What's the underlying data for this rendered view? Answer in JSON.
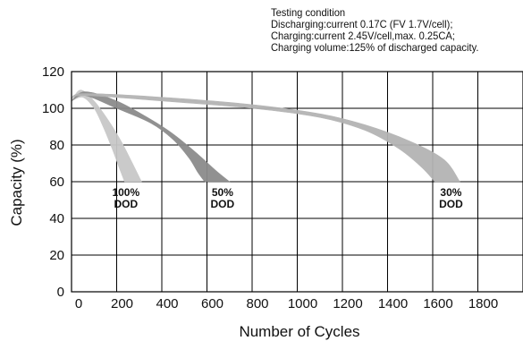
{
  "testing_condition": {
    "title": "Testing condition",
    "lines": [
      "Discharging:current 0.17C (FV 1.7V/cell);",
      "Charging:current 2.45V/cell,max. 0.25CA;",
      "Charging volume:125% of discharged  capacity."
    ]
  },
  "chart_data": {
    "type": "area",
    "title": "",
    "xlabel": "Number of Cycles",
    "ylabel": "Capacity (%)",
    "xlim": [
      0,
      2000
    ],
    "ylim": [
      0,
      120
    ],
    "x_ticks": [
      0,
      200,
      400,
      600,
      800,
      1000,
      1200,
      1400,
      1600,
      1800
    ],
    "y_ticks": [
      0,
      20,
      40,
      60,
      80,
      100,
      120
    ],
    "grid": true,
    "series": [
      {
        "name": "100% DOD",
        "label_lines": [
          "100%",
          "DOD"
        ],
        "color": "#c8c8c8",
        "upper": [
          [
            0,
            104
          ],
          [
            40,
            110
          ],
          [
            100,
            104
          ],
          [
            160,
            94
          ],
          [
            220,
            82
          ],
          [
            270,
            70
          ],
          [
            310,
            60
          ]
        ],
        "lower": [
          [
            0,
            104
          ],
          [
            50,
            106
          ],
          [
            100,
            100
          ],
          [
            140,
            90
          ],
          [
            180,
            78
          ],
          [
            210,
            68
          ],
          [
            235,
            60
          ]
        ]
      },
      {
        "name": "50% DOD",
        "label_lines": [
          "50%",
          "DOD"
        ],
        "color": "#8c8c8c",
        "upper": [
          [
            0,
            104
          ],
          [
            60,
            109
          ],
          [
            200,
            104
          ],
          [
            350,
            94
          ],
          [
            450,
            86
          ],
          [
            550,
            76
          ],
          [
            640,
            66
          ],
          [
            700,
            60
          ]
        ],
        "lower": [
          [
            0,
            104
          ],
          [
            60,
            107
          ],
          [
            200,
            100
          ],
          [
            350,
            92
          ],
          [
            450,
            83
          ],
          [
            520,
            73
          ],
          [
            560,
            65
          ],
          [
            590,
            60
          ]
        ]
      },
      {
        "name": "30% DOD",
        "label_lines": [
          "30%",
          "DOD"
        ],
        "color": "#b4b4b4",
        "upper": [
          [
            0,
            104
          ],
          [
            50,
            108
          ],
          [
            400,
            106
          ],
          [
            800,
            102
          ],
          [
            1100,
            97
          ],
          [
            1300,
            91
          ],
          [
            1500,
            82
          ],
          [
            1650,
            72
          ],
          [
            1720,
            60
          ]
        ],
        "lower": [
          [
            0,
            104
          ],
          [
            50,
            107
          ],
          [
            400,
            104
          ],
          [
            800,
            100
          ],
          [
            1100,
            95
          ],
          [
            1300,
            88
          ],
          [
            1450,
            78
          ],
          [
            1550,
            68
          ],
          [
            1610,
            60
          ]
        ]
      }
    ]
  }
}
